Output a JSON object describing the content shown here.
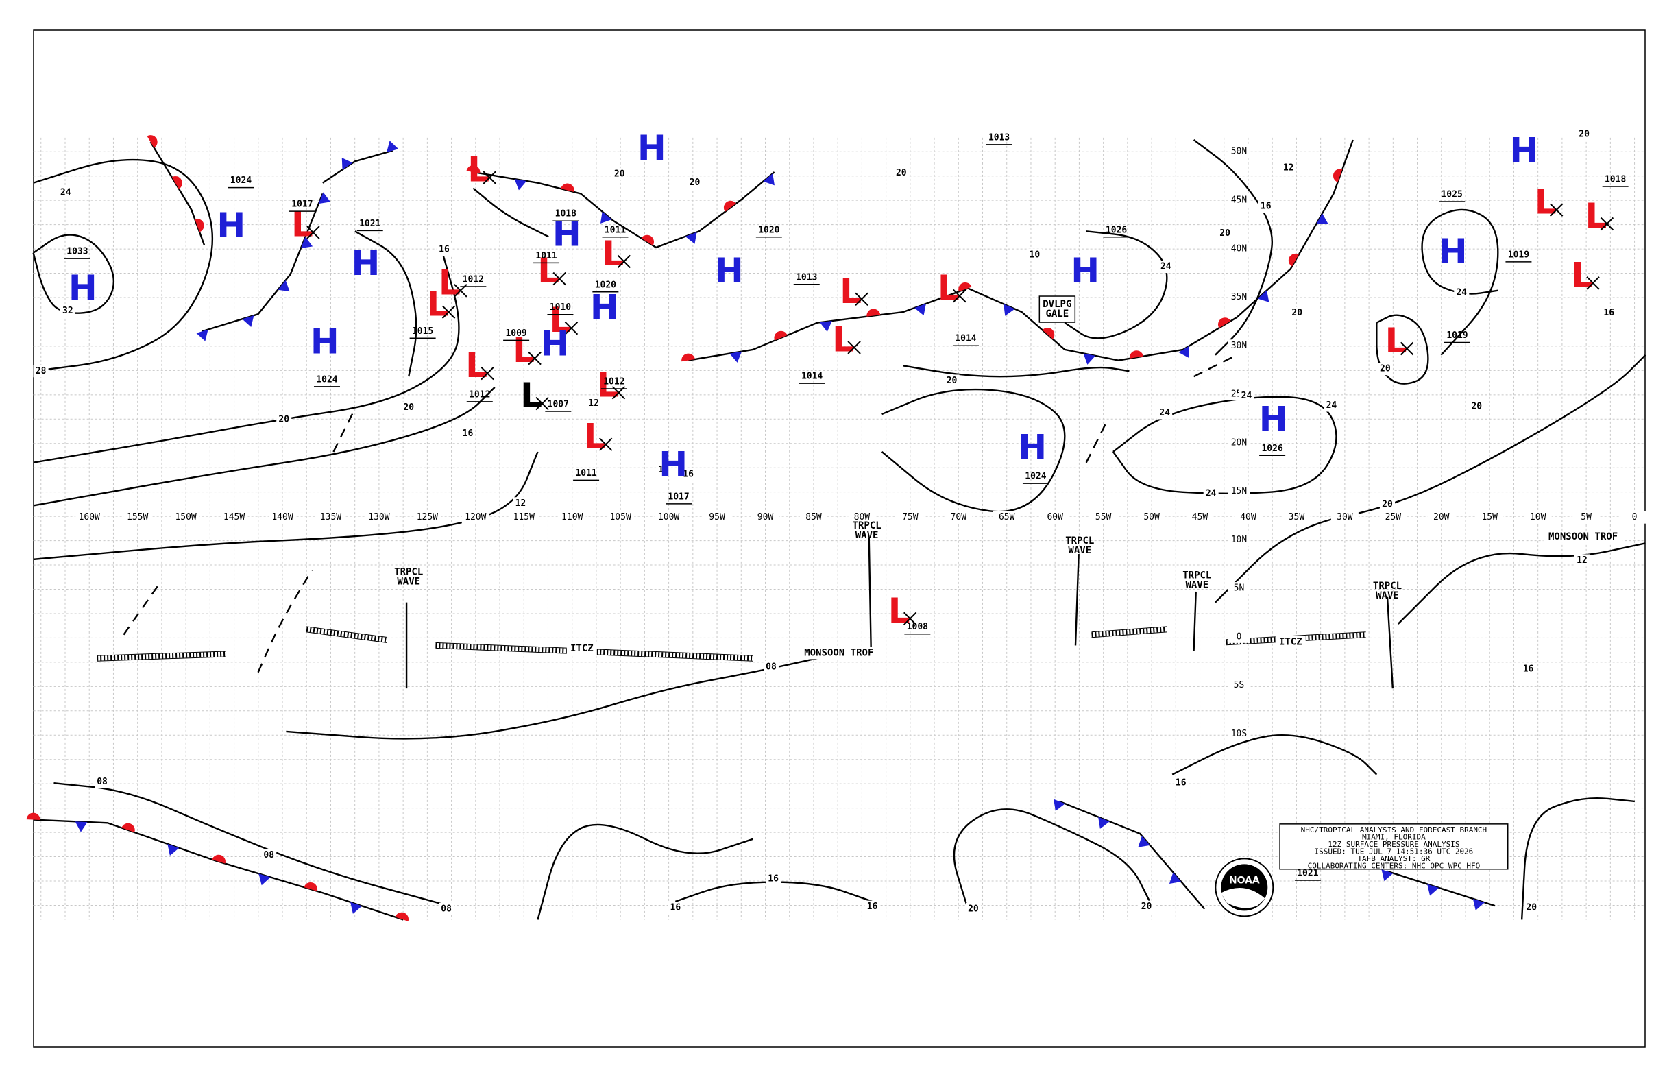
{
  "map": {
    "info_box": {
      "lines": [
        "NHC/TROPICAL ANALYSIS AND FORECAST BRANCH",
        "MIAMI, FLORIDA",
        "12Z SURFACE PRESSURE ANALYSIS",
        "ISSUED: TUE JUL 7 14:51:36 UTC 2026",
        "TAFB ANALYST: GR",
        "COLLABORATING CENTERS: NHC OPC WPC HFO"
      ]
    },
    "logo_text": "NOAA",
    "symbol_colors": {
      "H": "#1f1fd6",
      "L": "#e8141e"
    },
    "longitude_labels": [
      "160W",
      "155W",
      "150W",
      "145W",
      "140W",
      "135W",
      "130W",
      "125W",
      "120W",
      "115W",
      "110W",
      "105W",
      "100W",
      "95W",
      "90W",
      "85W",
      "80W",
      "75W",
      "70W",
      "65W",
      "60W",
      "55W",
      "50W",
      "45W",
      "40W",
      "35W",
      "30W",
      "25W",
      "20W",
      "15W",
      "10W",
      "5W",
      "0"
    ],
    "latitude_labels": [
      "50N",
      "45N",
      "40N",
      "35N",
      "30N",
      "25N",
      "20N",
      "15N",
      "10N",
      "5N",
      "0",
      "5S",
      "10S"
    ],
    "pressure_centers": [
      {
        "symbol": "H",
        "pressure": 1033
      },
      {
        "symbol": "H",
        "pressure": 1024
      },
      {
        "symbol": "L",
        "pressure": 1017
      },
      {
        "symbol": "H",
        "pressure": 1021
      },
      {
        "symbol": "H",
        "pressure": 1024
      },
      {
        "symbol": "L",
        "pressure": 1012
      },
      {
        "symbol": "L",
        "pressure": 1015
      },
      {
        "symbol": "L",
        "pressure": 1012
      },
      {
        "symbol": "L",
        "pressure": 1009
      },
      {
        "symbol": "L"
      },
      {
        "symbol": "L",
        "pressure": 1011
      },
      {
        "symbol": "H",
        "pressure": 1018
      },
      {
        "symbol": "L",
        "pressure": 1011
      },
      {
        "symbol": "L",
        "pressure": 1010
      },
      {
        "symbol": "H",
        "pressure": 1020
      },
      {
        "symbol": "H"
      },
      {
        "symbol": "L",
        "pressure": 1007,
        "color": "#000000"
      },
      {
        "symbol": "L",
        "pressure": 1012
      },
      {
        "symbol": "L",
        "pressure": 1011
      },
      {
        "symbol": "H",
        "pressure": 1017
      },
      {
        "symbol": "H"
      },
      {
        "symbol": "H",
        "pressure": 1020
      },
      {
        "symbol": "L",
        "pressure": 1013
      },
      {
        "symbol": "L",
        "pressure": 1014
      },
      {
        "symbol": "L",
        "pressure": 1014
      },
      {
        "symbol": "H",
        "pressure": 1026
      },
      {
        "symbol": "H",
        "pressure": 1024
      },
      {
        "symbol": "H",
        "pressure": 1026
      },
      {
        "symbol": "L",
        "pressure": 1008
      },
      {
        "symbol": "H",
        "pressure": 1025
      },
      {
        "symbol": "H"
      },
      {
        "symbol": "L",
        "pressure": 1018
      },
      {
        "symbol": "L"
      },
      {
        "symbol": "L",
        "pressure": 1019
      },
      {
        "symbol": "L",
        "pressure": 1019
      }
    ],
    "isolated_pressure_values": [
      1013,
      1021
    ],
    "features": [
      {
        "lines": [
          "TRPCL",
          "WAVE"
        ]
      },
      {
        "lines": [
          "TRPCL",
          "WAVE"
        ]
      },
      {
        "lines": [
          "TRPCL",
          "WAVE"
        ]
      },
      {
        "lines": [
          "TRPCL",
          "WAVE"
        ]
      },
      {
        "lines": [
          "TRPCL",
          "WAVE"
        ]
      },
      {
        "lines": [
          "ITCZ"
        ]
      },
      {
        "lines": [
          "ITCZ"
        ]
      },
      {
        "lines": [
          "MONSOON TROF"
        ]
      },
      {
        "lines": [
          "MONSOON TROF"
        ]
      },
      {
        "lines": [
          "DVLPG",
          "GALE"
        ]
      }
    ],
    "isobar_labels": [
      "24",
      "32",
      "28",
      "20",
      "20",
      "16",
      "12",
      "16",
      "08",
      "08",
      "08",
      "08",
      "16",
      "16",
      "16",
      "20",
      "20",
      "20",
      "16",
      "16",
      "12",
      "20",
      "20",
      "24",
      "16",
      "20",
      "20",
      "24",
      "24",
      "24",
      "24",
      "20",
      "24",
      "20",
      "16",
      "12",
      "20",
      "20",
      "20",
      "16",
      "16",
      "12",
      "20",
      "10"
    ]
  }
}
